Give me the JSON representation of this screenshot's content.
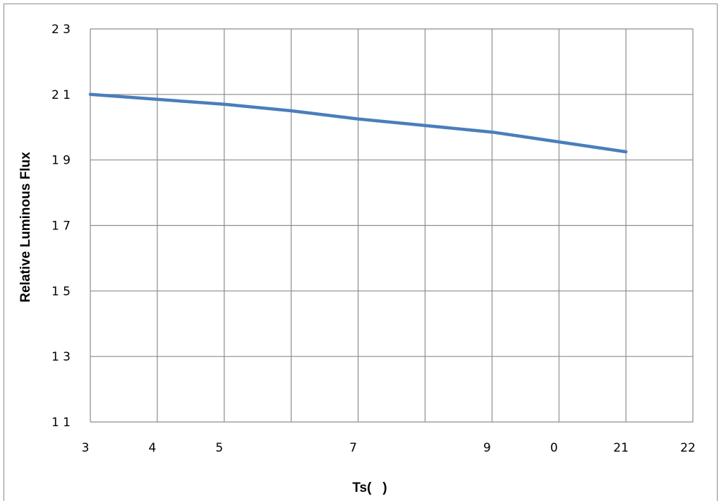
{
  "chart_data": {
    "type": "line",
    "title": "",
    "xlabel": "Ts(   )",
    "ylabel": "Relative Luminous Flux",
    "x_ticks": [
      "3",
      "4",
      "5",
      "",
      "7",
      "",
      "9",
      "0",
      "21",
      "22"
    ],
    "y_ticks": [
      "2 3",
      "2 1",
      "1 9",
      "1 7",
      "1 5",
      "1 3",
      "1 1"
    ],
    "xlim": [
      0,
      9
    ],
    "ylim": [
      11,
      23
    ],
    "grid": true,
    "legend": "none",
    "series": [
      {
        "color": "#4a7ebb",
        "x": [
          0,
          1,
          2,
          3,
          4,
          5,
          6,
          7,
          8
        ],
        "y": [
          21.0,
          20.85,
          20.7,
          20.5,
          20.25,
          20.05,
          19.85,
          19.55,
          19.25
        ]
      }
    ]
  }
}
